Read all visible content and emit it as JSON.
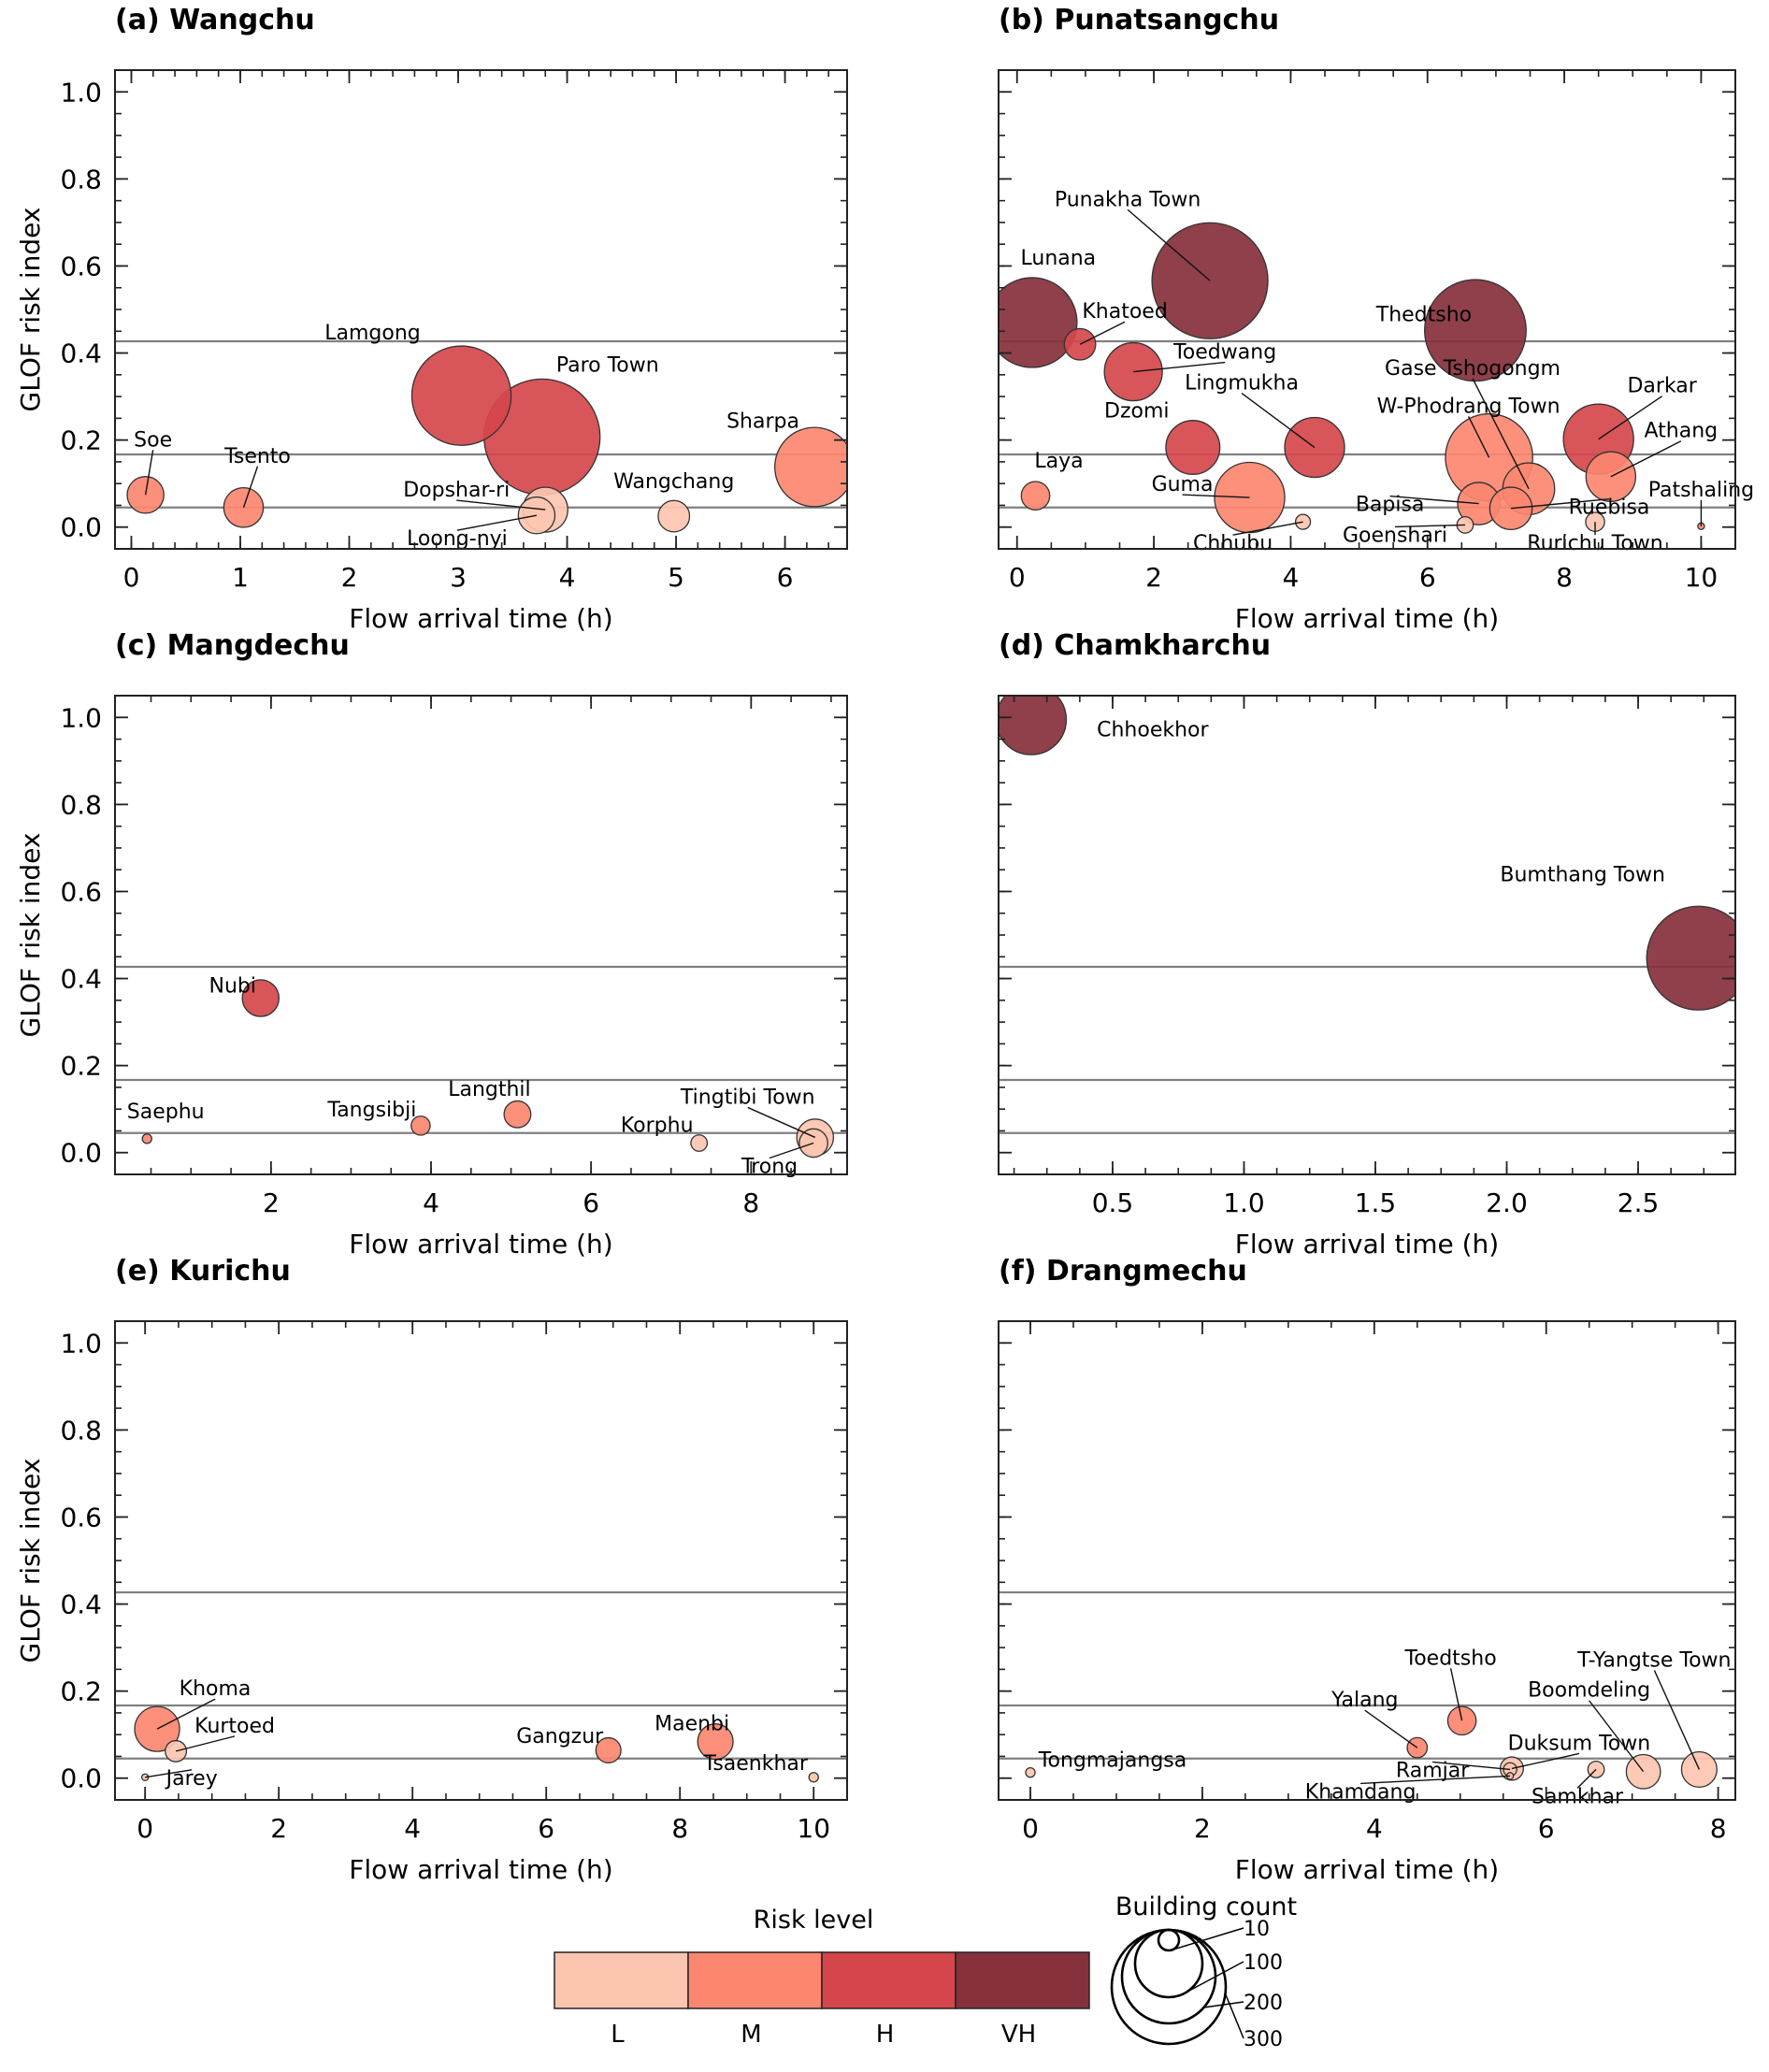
{
  "figure": {
    "risk_colors": {
      "L": "#FCC5B0",
      "M": "#FC8770",
      "H": "#D5464C",
      "VH": "#85303B"
    },
    "threshold_lines": [
      0.427,
      0.167,
      0.045
    ],
    "threshold_color": "#808080"
  },
  "legend": {
    "risk_title": "Risk level",
    "risk_levels": [
      {
        "key": "L",
        "label": "L"
      },
      {
        "key": "M",
        "label": "M"
      },
      {
        "key": "H",
        "label": "H"
      },
      {
        "key": "VH",
        "label": "VH"
      }
    ],
    "size_title": "Building count",
    "size_values": [
      10,
      100,
      200,
      300
    ],
    "size_labels": [
      "10",
      "100",
      "200",
      "300"
    ]
  },
  "chart_data": [
    {
      "type": "scatter",
      "id": "a",
      "title": "(a) Wangchu",
      "xlabel": "Flow arrival time (h)",
      "ylabel": "GLOF risk index",
      "xlim": [
        -0.15,
        6.57
      ],
      "ylim": [
        -0.05,
        1.05
      ],
      "xticks": [
        0,
        1,
        2,
        3,
        4,
        5,
        6
      ],
      "xtick_labels": [
        "0",
        "1",
        "2",
        "3",
        "4",
        "5",
        "6"
      ],
      "yticks": [
        0.0,
        0.2,
        0.4,
        0.6,
        0.8,
        1.0
      ],
      "ytick_labels": [
        "0.0",
        "0.2",
        "0.4",
        "0.6",
        "0.8",
        "1.0"
      ],
      "points": [
        {
          "name": "Soe",
          "x": 0.13,
          "y": 0.074,
          "risk": "M",
          "buildings": 30
        },
        {
          "name": "Tsento",
          "x": 1.03,
          "y": 0.045,
          "risk": "M",
          "buildings": 35
        },
        {
          "name": "Lamgong",
          "x": 3.03,
          "y": 0.302,
          "risk": "H",
          "buildings": 220
        },
        {
          "name": "Paro Town",
          "x": 3.77,
          "y": 0.207,
          "risk": "H",
          "buildings": 300
        },
        {
          "name": "Dopshar-ri",
          "x": 3.8,
          "y": 0.04,
          "risk": "L",
          "buildings": 45
        },
        {
          "name": "Loong-nyi",
          "x": 3.72,
          "y": 0.027,
          "risk": "L",
          "buildings": 30
        },
        {
          "name": "Wangchang",
          "x": 4.98,
          "y": 0.025,
          "risk": "L",
          "buildings": 22
        },
        {
          "name": "Sharpa",
          "x": 6.27,
          "y": 0.138,
          "risk": "M",
          "buildings": 140
        }
      ]
    },
    {
      "type": "scatter",
      "id": "b",
      "title": "(b) Punatsangchu",
      "xlabel": "Flow arrival time (h)",
      "ylabel": "",
      "xlim": [
        -0.27,
        10.5
      ],
      "ylim": [
        -0.05,
        1.05
      ],
      "xticks": [
        0,
        2,
        4,
        6,
        8,
        10
      ],
      "xtick_labels": [
        "0",
        "2",
        "4",
        "6",
        "8",
        "10"
      ],
      "yticks": [
        0.0,
        0.2,
        0.4,
        0.6,
        0.8,
        1.0
      ],
      "ytick_labels": [],
      "points": [
        {
          "name": "Punakha Town",
          "x": 2.82,
          "y": 0.566,
          "risk": "VH",
          "buildings": 300
        },
        {
          "name": "Lunana",
          "x": 0.22,
          "y": 0.47,
          "risk": "VH",
          "buildings": 180
        },
        {
          "name": "Khatoed",
          "x": 0.92,
          "y": 0.42,
          "risk": "H",
          "buildings": 22
        },
        {
          "name": "Thedtsho",
          "x": 6.7,
          "y": 0.452,
          "risk": "VH",
          "buildings": 230
        },
        {
          "name": "Toedwang",
          "x": 1.7,
          "y": 0.357,
          "risk": "H",
          "buildings": 75
        },
        {
          "name": "Dzomi",
          "x": 2.57,
          "y": 0.183,
          "risk": "H",
          "buildings": 65
        },
        {
          "name": "Lingmukha",
          "x": 4.35,
          "y": 0.183,
          "risk": "H",
          "buildings": 80
        },
        {
          "name": "W-Phodrang Town",
          "x": 6.9,
          "y": 0.16,
          "risk": "M",
          "buildings": 170
        },
        {
          "name": "Gase Tshogongm",
          "x": 7.48,
          "y": 0.088,
          "risk": "M",
          "buildings": 60
        },
        {
          "name": "Darkar",
          "x": 8.5,
          "y": 0.202,
          "risk": "H",
          "buildings": 110
        },
        {
          "name": "Athang",
          "x": 8.68,
          "y": 0.116,
          "risk": "M",
          "buildings": 55
        },
        {
          "name": "Laya",
          "x": 0.27,
          "y": 0.072,
          "risk": "M",
          "buildings": 18
        },
        {
          "name": "Guma",
          "x": 3.4,
          "y": 0.068,
          "risk": "M",
          "buildings": 110
        },
        {
          "name": "Chhubu",
          "x": 4.18,
          "y": 0.012,
          "risk": "L",
          "buildings": 5
        },
        {
          "name": "Bapisa",
          "x": 6.75,
          "y": 0.054,
          "risk": "M",
          "buildings": 40
        },
        {
          "name": "Ruebisa",
          "x": 7.22,
          "y": 0.043,
          "risk": "M",
          "buildings": 40
        },
        {
          "name": "Goenshari",
          "x": 6.55,
          "y": 0.005,
          "risk": "L",
          "buildings": 6
        },
        {
          "name": "Rurichu Town",
          "x": 8.45,
          "y": 0.012,
          "risk": "L",
          "buildings": 8
        },
        {
          "name": "Patshaling",
          "x": 10.0,
          "y": 0.002,
          "risk": "M",
          "buildings": 1
        }
      ]
    },
    {
      "type": "scatter",
      "id": "c",
      "title": "(c) Mangdechu",
      "xlabel": "Flow arrival time (h)",
      "ylabel": "GLOF risk index",
      "xlim": [
        0.05,
        9.2
      ],
      "ylim": [
        -0.05,
        1.05
      ],
      "xticks": [
        2,
        4,
        6,
        8
      ],
      "xtick_labels": [
        "2",
        "4",
        "6",
        "8"
      ],
      "yticks": [
        0.0,
        0.2,
        0.4,
        0.6,
        0.8,
        1.0
      ],
      "ytick_labels": [
        "0.0",
        "0.2",
        "0.4",
        "0.6",
        "0.8",
        "1.0"
      ],
      "points": [
        {
          "name": "Saephu",
          "x": 0.45,
          "y": 0.032,
          "risk": "M",
          "buildings": 2
        },
        {
          "name": "Nubi",
          "x": 1.87,
          "y": 0.355,
          "risk": "H",
          "buildings": 30
        },
        {
          "name": "Tangsibji",
          "x": 3.87,
          "y": 0.062,
          "risk": "M",
          "buildings": 8
        },
        {
          "name": "Langthil",
          "x": 5.08,
          "y": 0.088,
          "risk": "M",
          "buildings": 16
        },
        {
          "name": "Korphu",
          "x": 7.35,
          "y": 0.022,
          "risk": "L",
          "buildings": 6
        },
        {
          "name": "Tingtibi Town",
          "x": 8.8,
          "y": 0.035,
          "risk": "L",
          "buildings": 30
        },
        {
          "name": "Trong",
          "x": 8.78,
          "y": 0.022,
          "risk": "L",
          "buildings": 18
        }
      ]
    },
    {
      "type": "scatter",
      "id": "d",
      "title": "(d) Chamkharchu",
      "xlabel": "Flow arrival time (h)",
      "ylabel": "",
      "xlim": [
        0.066,
        2.87
      ],
      "ylim": [
        -0.05,
        1.05
      ],
      "xticks": [
        0.5,
        1.0,
        1.5,
        2.0,
        2.5
      ],
      "xtick_labels": [
        "0.5",
        "1.0",
        "1.5",
        "2.0",
        "2.5"
      ],
      "yticks": [
        0.0,
        0.2,
        0.4,
        0.6,
        0.8,
        1.0
      ],
      "ytick_labels": [],
      "points": [
        {
          "name": "Chhoekhor",
          "x": 0.19,
          "y": 0.995,
          "risk": "VH",
          "buildings": 110
        },
        {
          "name": "Bumthang Town",
          "x": 2.73,
          "y": 0.447,
          "risk": "VH",
          "buildings": 240
        }
      ]
    },
    {
      "type": "scatter",
      "id": "e",
      "title": "(e) Kurichu",
      "xlabel": "Flow arrival time (h)",
      "ylabel": "GLOF risk index",
      "xlim": [
        -0.45,
        10.5
      ],
      "ylim": [
        -0.05,
        1.05
      ],
      "xticks": [
        0,
        2,
        4,
        6,
        8,
        10
      ],
      "xtick_labels": [
        "0",
        "2",
        "4",
        "6",
        "8",
        "10"
      ],
      "yticks": [
        0.0,
        0.2,
        0.4,
        0.6,
        0.8,
        1.0
      ],
      "ytick_labels": [
        "0.0",
        "0.2",
        "0.4",
        "0.6",
        "0.8",
        "1.0"
      ],
      "points": [
        {
          "name": "Khoma",
          "x": 0.18,
          "y": 0.113,
          "risk": "M",
          "buildings": 45
        },
        {
          "name": "Kurtoed",
          "x": 0.46,
          "y": 0.062,
          "risk": "L",
          "buildings": 10
        },
        {
          "name": "Jarey",
          "x": 0.0,
          "y": 0.002,
          "risk": "L",
          "buildings": 1
        },
        {
          "name": "Gangzur",
          "x": 6.93,
          "y": 0.064,
          "risk": "M",
          "buildings": 14
        },
        {
          "name": "Maenbi",
          "x": 8.53,
          "y": 0.084,
          "risk": "M",
          "buildings": 28
        },
        {
          "name": "Tsaenkhar",
          "x": 10.0,
          "y": 0.002,
          "risk": "L",
          "buildings": 2
        }
      ]
    },
    {
      "type": "scatter",
      "id": "f",
      "title": "(f) Drangmechu",
      "xlabel": "Flow arrival time (h)",
      "ylabel": "",
      "xlim": [
        -0.37,
        8.2
      ],
      "ylim": [
        -0.05,
        1.05
      ],
      "xticks": [
        0,
        2,
        4,
        6,
        8
      ],
      "xtick_labels": [
        "0",
        "2",
        "4",
        "6",
        "8"
      ],
      "yticks": [
        0.0,
        0.2,
        0.4,
        0.6,
        0.8,
        1.0
      ],
      "ytick_labels": [],
      "points": [
        {
          "name": "Tongmajangsa",
          "x": 0.0,
          "y": 0.013,
          "risk": "L",
          "buildings": 2
        },
        {
          "name": "Yalang",
          "x": 4.5,
          "y": 0.07,
          "risk": "M",
          "buildings": 9
        },
        {
          "name": "Toedtsho",
          "x": 5.02,
          "y": 0.132,
          "risk": "M",
          "buildings": 18
        },
        {
          "name": "Duksum Town",
          "x": 5.6,
          "y": 0.022,
          "risk": "L",
          "buildings": 12
        },
        {
          "name": "Ramjar",
          "x": 5.58,
          "y": 0.02,
          "risk": "L",
          "buildings": 4
        },
        {
          "name": "Khamdang",
          "x": 5.58,
          "y": 0.005,
          "risk": "L",
          "buildings": 1
        },
        {
          "name": "Samkhar",
          "x": 6.58,
          "y": 0.02,
          "risk": "L",
          "buildings": 6
        },
        {
          "name": "Boomdeling",
          "x": 7.13,
          "y": 0.015,
          "risk": "L",
          "buildings": 26
        },
        {
          "name": "T-Yangtse Town",
          "x": 7.78,
          "y": 0.02,
          "risk": "L",
          "buildings": 28
        }
      ]
    }
  ]
}
